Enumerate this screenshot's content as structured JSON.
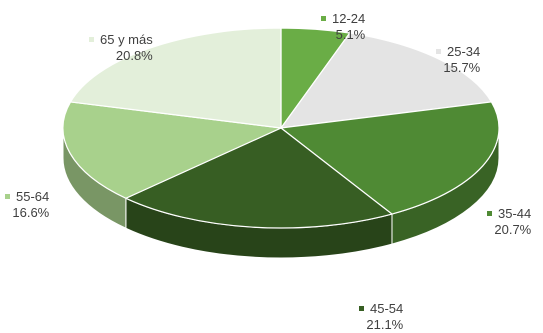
{
  "chart_data": {
    "type": "pie",
    "style": "3d-exploded-none",
    "slices": [
      {
        "name": "12-24",
        "value": 5.1,
        "label": "5.1%",
        "color": "#6aad46"
      },
      {
        "name": "25-34",
        "value": 15.7,
        "label": "15.7%",
        "color": "#e4e4e4"
      },
      {
        "name": "35-44",
        "value": 20.7,
        "label": "20.7%",
        "color": "#4f8a34"
      },
      {
        "name": "45-54",
        "value": 21.1,
        "label": "21.1%",
        "color": "#375e23"
      },
      {
        "name": "55-64",
        "value": 16.6,
        "label": "16.6%",
        "color": "#a8d18c"
      },
      {
        "name": "65 y más",
        "value": 20.8,
        "label": "20.8%",
        "color": "#e3efda"
      }
    ]
  }
}
